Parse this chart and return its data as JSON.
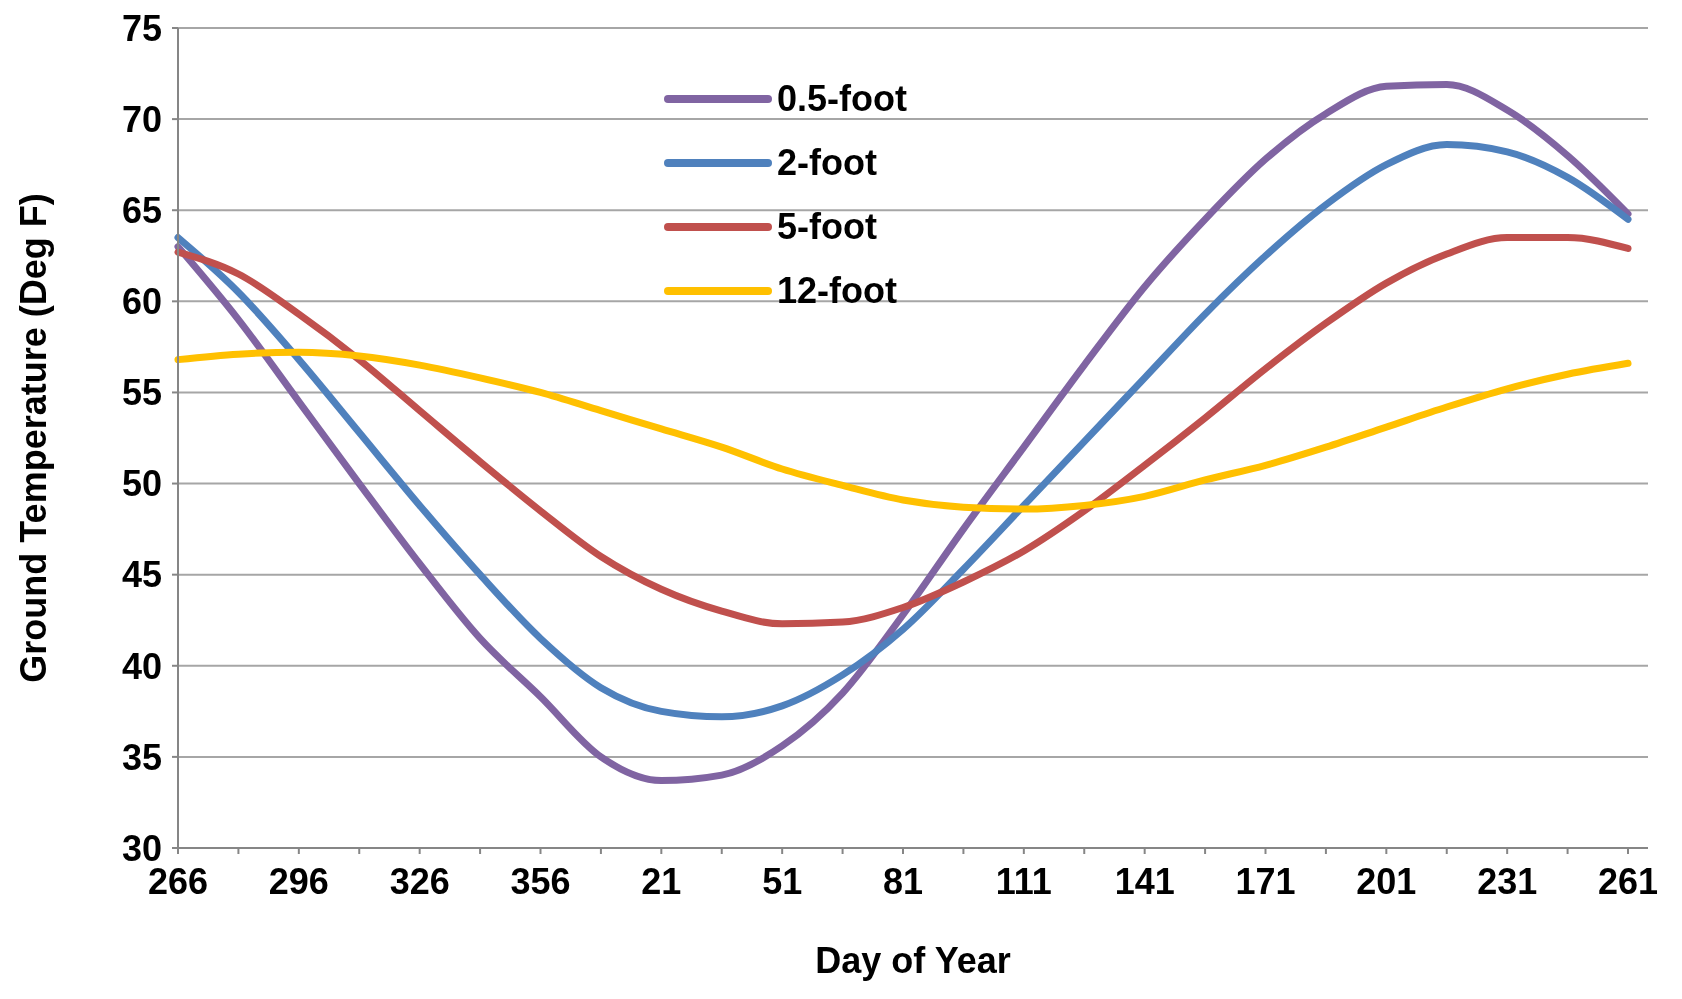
{
  "chart_data": {
    "type": "line",
    "xlabel": "Day of Year",
    "ylabel": "Ground Temperature (Deg F)",
    "categories": [
      "266",
      null,
      "296",
      null,
      "326",
      null,
      "356",
      null,
      "21",
      null,
      "51",
      null,
      "81",
      null,
      "111",
      null,
      "141",
      null,
      "171",
      null,
      "201",
      null,
      "231",
      null,
      "261"
    ],
    "series": [
      {
        "name": "0.5-foot",
        "color": "#8064a2",
        "values": [
          63,
          59,
          54.5,
          50,
          45.6,
          41.5,
          38.3,
          35,
          33.7,
          34,
          35.6,
          38.5,
          42.8,
          47.5,
          52,
          56.5,
          60.8,
          64.5,
          67.8,
          70.3,
          71.8,
          71.9,
          70.5,
          68,
          64.8
        ]
      },
      {
        "name": "2-foot",
        "color": "#4f81bd",
        "values": [
          63.5,
          60.5,
          56.8,
          52.8,
          48.8,
          45,
          41.5,
          38.8,
          37.5,
          37.2,
          37.8,
          39.5,
          42,
          45.3,
          48.8,
          52.3,
          55.8,
          59.3,
          62.5,
          65.3,
          67.5,
          68.6,
          68.2,
          66.8,
          64.5
        ]
      },
      {
        "name": "5-foot",
        "color": "#c0504d",
        "values": [
          62.7,
          61.5,
          59.3,
          56.8,
          54,
          51.2,
          48.5,
          46,
          44.2,
          43,
          42.3,
          42.4,
          43.2,
          44.6,
          46.3,
          48.5,
          51,
          53.6,
          56.3,
          58.8,
          61,
          62.6,
          63.5,
          63.5,
          62.9
        ]
      },
      {
        "name": "12-foot",
        "color": "#ffc000",
        "values": [
          56.8,
          57.1,
          57.2,
          57,
          56.5,
          55.8,
          55,
          54,
          53,
          52,
          50.8,
          49.9,
          49.1,
          48.7,
          48.6,
          48.8,
          49.3,
          50.2,
          51,
          52,
          53.1,
          54.2,
          55.2,
          56,
          56.6
        ]
      }
    ],
    "ylim": [
      30,
      75
    ],
    "yticks": [
      30,
      35,
      40,
      45,
      50,
      55,
      60,
      65,
      70,
      75
    ],
    "grid": "y",
    "legend": "top",
    "marker": "none",
    "line_style": "solid"
  }
}
